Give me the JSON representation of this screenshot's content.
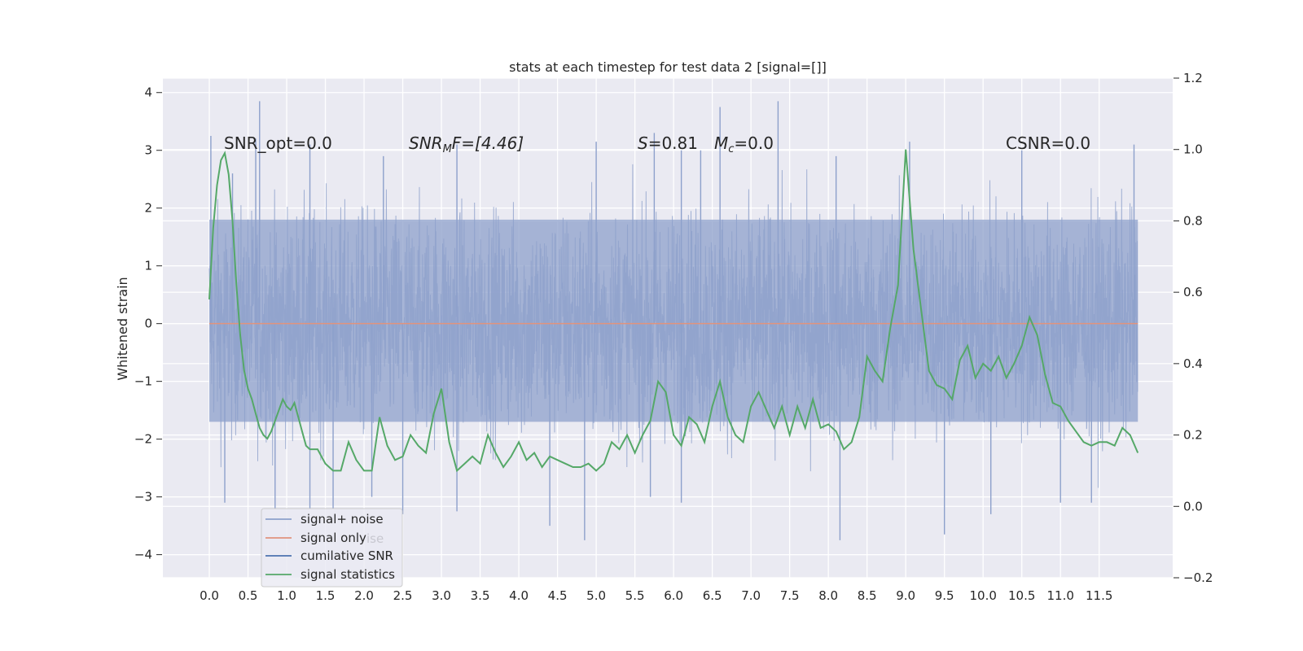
{
  "chart_data": {
    "type": "line",
    "title": "stats at each timestep for test data 2 [signal=[]]",
    "ylabel": "Whitened strain",
    "xlim": [
      -0.6,
      12.45
    ],
    "ylim": [
      -4.4,
      4.25
    ],
    "y2lim": [
      -0.2,
      1.2
    ],
    "x_ticks": [
      "0.0",
      "0.5",
      "1.0",
      "1.5",
      "2.0",
      "2.5",
      "3.0",
      "3.5",
      "4.0",
      "4.5",
      "5.0",
      "5.5",
      "6.0",
      "6.5",
      "7.0",
      "7.5",
      "8.0",
      "8.5",
      "9.0",
      "9.5",
      "10.0",
      "10.5",
      "11.0",
      "11.5"
    ],
    "y_ticks": [
      "4",
      "3",
      "2",
      "1",
      "0",
      "−1",
      "−2",
      "−3",
      "−4"
    ],
    "y2_ticks": [
      "1.2",
      "1.0",
      "0.8",
      "0.6",
      "0.4",
      "0.2",
      "0.0",
      "−0.2"
    ],
    "grid": true,
    "legend_position": "lower-left",
    "annotations": {
      "snr_opt": "SNR_opt=0.0",
      "snr_mf_main": "SNR",
      "snr_mf_sub": "M",
      "snr_mf_rest": "F=[4.46]",
      "s_italic": "S",
      "s_value": "=0.81",
      "mc_main": "M",
      "mc_sub": "c",
      "mc_value": "=0.0",
      "csnr": "CSNR=0.0"
    },
    "series": [
      {
        "name": "signal+ noise",
        "color": "#8da0cb",
        "description_values": "noise band",
        "band_core": [
          -1.7,
          1.8
        ],
        "peaks_upper": [
          [
            0.02,
            3.25
          ],
          [
            0.3,
            2.6
          ],
          [
            0.6,
            3.2
          ],
          [
            0.65,
            3.85
          ],
          [
            1.3,
            3.1
          ],
          [
            2.25,
            2.9
          ],
          [
            3.2,
            3.1
          ],
          [
            5.0,
            3.15
          ],
          [
            5.75,
            3.3
          ],
          [
            6.1,
            3.0
          ],
          [
            6.35,
            3.0
          ],
          [
            6.6,
            3.75
          ],
          [
            7.35,
            3.85
          ],
          [
            8.1,
            2.9
          ],
          [
            9.05,
            3.15
          ],
          [
            10.5,
            3.0
          ],
          [
            11.95,
            3.1
          ]
        ],
        "peaks_lower": [
          [
            0.2,
            -3.1
          ],
          [
            0.85,
            -3.2
          ],
          [
            1.3,
            -3.2
          ],
          [
            1.6,
            -3.2
          ],
          [
            2.1,
            -3.0
          ],
          [
            2.5,
            -3.3
          ],
          [
            3.2,
            -3.25
          ],
          [
            4.4,
            -3.5
          ],
          [
            4.85,
            -3.75
          ],
          [
            5.7,
            -3.0
          ],
          [
            6.1,
            -3.1
          ],
          [
            8.15,
            -3.75
          ],
          [
            9.5,
            -3.65
          ],
          [
            10.1,
            -3.3
          ],
          [
            11.0,
            -3.1
          ],
          [
            11.4,
            -3.1
          ]
        ]
      },
      {
        "name": "signal only",
        "color": "#e1937d",
        "values": "constant 0.0"
      },
      {
        "name": "cumilative SNR",
        "color": "#4c72b0"
      },
      {
        "name": "signal statistics",
        "color": "#55a868",
        "axis": "right",
        "x": [
          0.0,
          0.05,
          0.1,
          0.15,
          0.2,
          0.25,
          0.3,
          0.35,
          0.4,
          0.45,
          0.5,
          0.55,
          0.6,
          0.65,
          0.7,
          0.75,
          0.8,
          0.85,
          0.9,
          0.95,
          1.0,
          1.05,
          1.1,
          1.15,
          1.2,
          1.25,
          1.3,
          1.35,
          1.4,
          1.5,
          1.6,
          1.7,
          1.8,
          1.9,
          2.0,
          2.1,
          2.2,
          2.3,
          2.4,
          2.5,
          2.6,
          2.7,
          2.8,
          2.9,
          3.0,
          3.1,
          3.2,
          3.3,
          3.4,
          3.5,
          3.6,
          3.7,
          3.8,
          3.9,
          4.0,
          4.1,
          4.2,
          4.3,
          4.4,
          4.5,
          4.6,
          4.7,
          4.8,
          4.9,
          5.0,
          5.1,
          5.2,
          5.3,
          5.4,
          5.5,
          5.6,
          5.7,
          5.8,
          5.9,
          6.0,
          6.1,
          6.2,
          6.3,
          6.4,
          6.5,
          6.6,
          6.7,
          6.8,
          6.9,
          7.0,
          7.1,
          7.2,
          7.3,
          7.4,
          7.5,
          7.6,
          7.7,
          7.8,
          7.9,
          8.0,
          8.1,
          8.2,
          8.3,
          8.4,
          8.5,
          8.6,
          8.7,
          8.8,
          8.9,
          9.0,
          9.1,
          9.2,
          9.3,
          9.4,
          9.5,
          9.6,
          9.7,
          9.8,
          9.9,
          10.0,
          10.1,
          10.2,
          10.3,
          10.4,
          10.5,
          10.6,
          10.7,
          10.8,
          10.9,
          11.0,
          11.1,
          11.2,
          11.3,
          11.4,
          11.5,
          11.6,
          11.7,
          11.8,
          11.9,
          12.0
        ],
        "values": [
          0.58,
          0.78,
          0.9,
          0.97,
          0.99,
          0.93,
          0.8,
          0.62,
          0.48,
          0.38,
          0.33,
          0.3,
          0.26,
          0.22,
          0.2,
          0.19,
          0.21,
          0.24,
          0.27,
          0.3,
          0.28,
          0.27,
          0.29,
          0.25,
          0.21,
          0.17,
          0.16,
          0.16,
          0.16,
          0.12,
          0.1,
          0.1,
          0.18,
          0.13,
          0.1,
          0.1,
          0.25,
          0.17,
          0.13,
          0.14,
          0.2,
          0.17,
          0.15,
          0.26,
          0.33,
          0.18,
          0.1,
          0.12,
          0.14,
          0.12,
          0.2,
          0.15,
          0.11,
          0.14,
          0.18,
          0.13,
          0.15,
          0.11,
          0.14,
          0.13,
          0.12,
          0.11,
          0.11,
          0.12,
          0.1,
          0.12,
          0.18,
          0.16,
          0.2,
          0.15,
          0.2,
          0.24,
          0.35,
          0.32,
          0.2,
          0.17,
          0.25,
          0.23,
          0.18,
          0.28,
          0.35,
          0.25,
          0.2,
          0.18,
          0.28,
          0.32,
          0.27,
          0.22,
          0.28,
          0.2,
          0.28,
          0.22,
          0.3,
          0.22,
          0.23,
          0.21,
          0.16,
          0.18,
          0.25,
          0.42,
          0.38,
          0.35,
          0.5,
          0.62,
          1.0,
          0.72,
          0.55,
          0.38,
          0.34,
          0.33,
          0.3,
          0.41,
          0.45,
          0.36,
          0.4,
          0.38,
          0.42,
          0.36,
          0.4,
          0.45,
          0.53,
          0.48,
          0.37,
          0.29,
          0.28,
          0.24,
          0.21,
          0.18,
          0.17,
          0.18,
          0.18,
          0.17,
          0.22,
          0.2,
          0.15
        ]
      }
    ]
  },
  "legend": {
    "items": [
      {
        "label": "signal+ noise",
        "color": "#8da0cb"
      },
      {
        "label": "signal only",
        "color": "#e1937d"
      },
      {
        "label": "cumilative SNR",
        "color": "#4c72b0"
      },
      {
        "label": "signal statistics",
        "color": "#55a868"
      }
    ],
    "ghost_text": "ise"
  },
  "colors": {
    "axes_bg": "#eaeaf2",
    "grid": "#ffffff",
    "text": "#262626"
  }
}
